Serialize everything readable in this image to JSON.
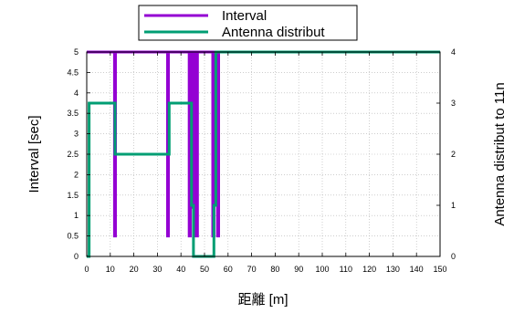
{
  "chart_data": {
    "type": "line",
    "xlabel": "距離 [m]",
    "ylabel": "Interval [sec]",
    "y2label": "Antenna distribut to 11n",
    "xlim": [
      0,
      150
    ],
    "ylim": [
      0,
      5
    ],
    "y2lim": [
      0,
      4
    ],
    "x_ticks": [
      0,
      10,
      20,
      30,
      40,
      50,
      60,
      70,
      80,
      90,
      100,
      110,
      120,
      130,
      140,
      150
    ],
    "y_ticks": [
      0,
      0.5,
      1,
      1.5,
      2,
      2.5,
      3,
      3.5,
      4,
      4.5,
      5
    ],
    "y2_ticks": [
      0,
      1,
      2,
      3,
      4
    ],
    "grid": true,
    "legend_position": "top-center",
    "series": [
      {
        "name": "Interval",
        "axis": "left",
        "color": "#9400d3",
        "points": [
          [
            0,
            5
          ],
          [
            11.8,
            5
          ],
          [
            11.8,
            0.5
          ],
          [
            12.2,
            0.5
          ],
          [
            12.2,
            5
          ],
          [
            34.3,
            5
          ],
          [
            34.3,
            0.5
          ],
          [
            34.7,
            0.5
          ],
          [
            34.7,
            5
          ],
          [
            43.5,
            5
          ],
          [
            43.5,
            0.5
          ],
          [
            44,
            0.5
          ],
          [
            44,
            5
          ],
          [
            44.5,
            5
          ],
          [
            44.5,
            1.2
          ],
          [
            45,
            1.2
          ],
          [
            45,
            5
          ],
          [
            45.5,
            5
          ],
          [
            45.5,
            0.5
          ],
          [
            46,
            0.5
          ],
          [
            46,
            5
          ],
          [
            46.5,
            5
          ],
          [
            46.5,
            0.5
          ],
          [
            47,
            0.5
          ],
          [
            47,
            5
          ],
          [
            53.5,
            5
          ],
          [
            53.5,
            0.5
          ],
          [
            54,
            0.5
          ],
          [
            54,
            5
          ],
          [
            54.5,
            5
          ],
          [
            54.5,
            1.3
          ],
          [
            55,
            1.3
          ],
          [
            55,
            5
          ],
          [
            55.5,
            5
          ],
          [
            55.5,
            0.5
          ],
          [
            56,
            0.5
          ],
          [
            56,
            5
          ],
          [
            150,
            5
          ]
        ]
      },
      {
        "name": "Antenna distribut",
        "axis": "right",
        "color": "#009e73",
        "points": [
          [
            0,
            0
          ],
          [
            1,
            0
          ],
          [
            1,
            3
          ],
          [
            12,
            3
          ],
          [
            12,
            2
          ],
          [
            35,
            2
          ],
          [
            35,
            3
          ],
          [
            44.5,
            3
          ],
          [
            44.5,
            1
          ],
          [
            45.3,
            1
          ],
          [
            45.3,
            0
          ],
          [
            54,
            0
          ],
          [
            54,
            1
          ],
          [
            54.8,
            1
          ],
          [
            54.8,
            4
          ],
          [
            150,
            4
          ]
        ]
      }
    ]
  }
}
